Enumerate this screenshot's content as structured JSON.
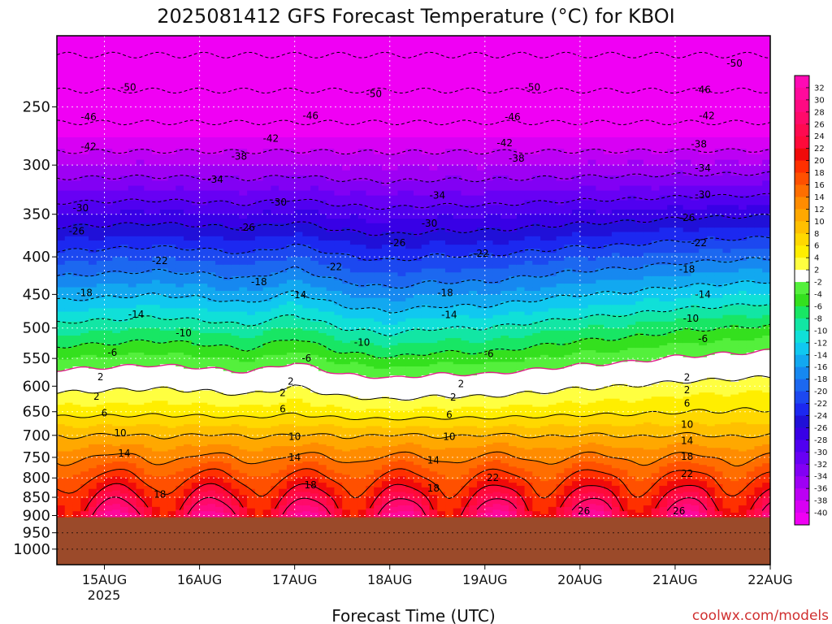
{
  "colors": {
    "ground": "#9b4a2a",
    "frame": "#000000",
    "credit": "#d03030",
    "zero_line": "#e0208a"
  },
  "chart_data": {
    "type": "heatmap",
    "title": "2025081412 GFS Forecast Temperature (°C) for KBOI",
    "xlabel": "Forecast Time (UTC)",
    "ylabel": "",
    "credit": "coolwx.com/models",
    "x_ticks": [
      "15AUG",
      "16AUG",
      "17AUG",
      "18AUG",
      "19AUG",
      "20AUG",
      "21AUG",
      "22AUG"
    ],
    "x_tick_hours": [
      12,
      36,
      60,
      84,
      108,
      132,
      156,
      180
    ],
    "x_year": "2025",
    "x_range_hours": [
      0,
      180
    ],
    "y_ticks": [
      250,
      300,
      350,
      400,
      450,
      500,
      550,
      600,
      650,
      700,
      750,
      800,
      850,
      900,
      950,
      1000
    ],
    "y_range_hpa": [
      200,
      1050
    ],
    "y_scale": "log",
    "ground_pressure_hpa": 905,
    "grid": "dotted",
    "colorbar": {
      "position": "right",
      "labels": [
        32,
        30,
        28,
        26,
        24,
        22,
        20,
        18,
        16,
        14,
        12,
        10,
        8,
        6,
        4,
        2,
        -2,
        -4,
        -6,
        -8,
        -10,
        -12,
        -14,
        -16,
        -18,
        -20,
        -22,
        -24,
        -26,
        -28,
        -30,
        -32,
        -34,
        -36,
        -38,
        -40
      ],
      "colors": [
        "#ff0ab4",
        "#ff0a9c",
        "#ff0a82",
        "#ff0a6a",
        "#ff0a50",
        "#ff0a3a",
        "#f00a0a",
        "#ff3000",
        "#ff5000",
        "#ff6e00",
        "#ff8c00",
        "#ffa800",
        "#ffc000",
        "#ffd800",
        "#ffee00",
        "#ffff40",
        "#ffffff",
        "#54f03c",
        "#34e01e",
        "#18e664",
        "#12e6a4",
        "#10e0d8",
        "#10c8f0",
        "#12a8f0",
        "#1688f0",
        "#1c68f0",
        "#1c48f0",
        "#1c28f0",
        "#2010d8",
        "#3800e6",
        "#5000f0",
        "#6800f4",
        "#8200f4",
        "#9e00f4",
        "#bc00f4",
        "#d800f4",
        "#f000f4"
      ]
    },
    "contour_levels": [
      -50,
      -46,
      -42,
      -38,
      -34,
      -30,
      -26,
      -22,
      -18,
      -14,
      -10,
      -6,
      -2,
      2,
      6,
      10,
      14,
      18,
      22,
      26
    ],
    "profile_pressure_hpa": [
      200,
      250,
      300,
      350,
      400,
      450,
      500,
      550,
      600,
      650,
      700,
      750,
      800,
      850,
      900
    ],
    "profile_temp_c": [
      -52,
      -44,
      -36,
      -28,
      -21,
      -15,
      -9,
      -4,
      1,
      5,
      10,
      14,
      18,
      22,
      26
    ],
    "times_hours": [
      0,
      12,
      24,
      36,
      48,
      60,
      72,
      84,
      96,
      108,
      120,
      132,
      144,
      156,
      168,
      180
    ],
    "mid_level_offsets_c": [
      0,
      0.5,
      1,
      0.5,
      -0.5,
      1.5,
      -1,
      -2,
      -1,
      -1,
      0,
      1,
      1.5,
      2.5,
      3,
      3.5
    ],
    "surface_diurnal_amplitude_c": 6,
    "contour_annotations": [
      {
        "value": "-50",
        "time_h": 18,
        "pressure_hpa": 235
      },
      {
        "value": "-50",
        "time_h": 80,
        "pressure_hpa": 240
      },
      {
        "value": "-50",
        "time_h": 120,
        "pressure_hpa": 235
      },
      {
        "value": "-50",
        "time_h": 171,
        "pressure_hpa": 218
      },
      {
        "value": "-46",
        "time_h": 8,
        "pressure_hpa": 258
      },
      {
        "value": "-46",
        "time_h": 64,
        "pressure_hpa": 257
      },
      {
        "value": "-46",
        "time_h": 115,
        "pressure_hpa": 258
      },
      {
        "value": "-46",
        "time_h": 163,
        "pressure_hpa": 237
      },
      {
        "value": "-42",
        "time_h": 8,
        "pressure_hpa": 283
      },
      {
        "value": "-42",
        "time_h": 54,
        "pressure_hpa": 276
      },
      {
        "value": "-42",
        "time_h": 113,
        "pressure_hpa": 280
      },
      {
        "value": "-42",
        "time_h": 164,
        "pressure_hpa": 257
      },
      {
        "value": "-38",
        "time_h": 46,
        "pressure_hpa": 292
      },
      {
        "value": "-38",
        "time_h": 116,
        "pressure_hpa": 294
      },
      {
        "value": "-38",
        "time_h": 162,
        "pressure_hpa": 281
      },
      {
        "value": "-34",
        "time_h": 40,
        "pressure_hpa": 314
      },
      {
        "value": "-34",
        "time_h": 96,
        "pressure_hpa": 330
      },
      {
        "value": "-34",
        "time_h": 163,
        "pressure_hpa": 303
      },
      {
        "value": "-30",
        "time_h": 6,
        "pressure_hpa": 343
      },
      {
        "value": "-30",
        "time_h": 56,
        "pressure_hpa": 337
      },
      {
        "value": "-30",
        "time_h": 94,
        "pressure_hpa": 360
      },
      {
        "value": "-30",
        "time_h": 163,
        "pressure_hpa": 329
      },
      {
        "value": "-26",
        "time_h": 5,
        "pressure_hpa": 369
      },
      {
        "value": "-26",
        "time_h": 48,
        "pressure_hpa": 365
      },
      {
        "value": "-26",
        "time_h": 86,
        "pressure_hpa": 383
      },
      {
        "value": "-26",
        "time_h": 159,
        "pressure_hpa": 354
      },
      {
        "value": "-22",
        "time_h": 26,
        "pressure_hpa": 405
      },
      {
        "value": "-22",
        "time_h": 70,
        "pressure_hpa": 413
      },
      {
        "value": "-22",
        "time_h": 107,
        "pressure_hpa": 396
      },
      {
        "value": "-22",
        "time_h": 162,
        "pressure_hpa": 383
      },
      {
        "value": "-18",
        "time_h": 7,
        "pressure_hpa": 448
      },
      {
        "value": "-18",
        "time_h": 51,
        "pressure_hpa": 433
      },
      {
        "value": "-18",
        "time_h": 98,
        "pressure_hpa": 448
      },
      {
        "value": "-18",
        "time_h": 159,
        "pressure_hpa": 416
      },
      {
        "value": "-14",
        "time_h": 20,
        "pressure_hpa": 479
      },
      {
        "value": "-14",
        "time_h": 61,
        "pressure_hpa": 451
      },
      {
        "value": "-14",
        "time_h": 99,
        "pressure_hpa": 480
      },
      {
        "value": "-14",
        "time_h": 163,
        "pressure_hpa": 450
      },
      {
        "value": "-10",
        "time_h": 32,
        "pressure_hpa": 508
      },
      {
        "value": "-10",
        "time_h": 77,
        "pressure_hpa": 523
      },
      {
        "value": "-10",
        "time_h": 160,
        "pressure_hpa": 485
      },
      {
        "value": "-6",
        "time_h": 14,
        "pressure_hpa": 540
      },
      {
        "value": "-6",
        "time_h": 63,
        "pressure_hpa": 550
      },
      {
        "value": "-6",
        "time_h": 109,
        "pressure_hpa": 542
      },
      {
        "value": "-6",
        "time_h": 163,
        "pressure_hpa": 517
      },
      {
        "value": "2",
        "time_h": 11,
        "pressure_hpa": 583
      },
      {
        "value": "2",
        "time_h": 10,
        "pressure_hpa": 620
      },
      {
        "value": "2",
        "time_h": 59,
        "pressure_hpa": 591
      },
      {
        "value": "2",
        "time_h": 57,
        "pressure_hpa": 613
      },
      {
        "value": "2",
        "time_h": 102,
        "pressure_hpa": 596
      },
      {
        "value": "2",
        "time_h": 100,
        "pressure_hpa": 621
      },
      {
        "value": "2",
        "time_h": 159,
        "pressure_hpa": 584
      },
      {
        "value": "2",
        "time_h": 159,
        "pressure_hpa": 607
      },
      {
        "value": "6",
        "time_h": 12,
        "pressure_hpa": 653
      },
      {
        "value": "6",
        "time_h": 57,
        "pressure_hpa": 645
      },
      {
        "value": "6",
        "time_h": 99,
        "pressure_hpa": 656
      },
      {
        "value": "6",
        "time_h": 159,
        "pressure_hpa": 633
      },
      {
        "value": "10",
        "time_h": 16,
        "pressure_hpa": 695
      },
      {
        "value": "10",
        "time_h": 60,
        "pressure_hpa": 703
      },
      {
        "value": "10",
        "time_h": 99,
        "pressure_hpa": 703
      },
      {
        "value": "10",
        "time_h": 159,
        "pressure_hpa": 677
      },
      {
        "value": "14",
        "time_h": 17,
        "pressure_hpa": 741
      },
      {
        "value": "14",
        "time_h": 60,
        "pressure_hpa": 750
      },
      {
        "value": "14",
        "time_h": 95,
        "pressure_hpa": 757
      },
      {
        "value": "14",
        "time_h": 159,
        "pressure_hpa": 712
      },
      {
        "value": "18",
        "time_h": 26,
        "pressure_hpa": 842
      },
      {
        "value": "18",
        "time_h": 64,
        "pressure_hpa": 818
      },
      {
        "value": "18",
        "time_h": 95,
        "pressure_hpa": 826
      },
      {
        "value": "18",
        "time_h": 159,
        "pressure_hpa": 748
      },
      {
        "value": "22",
        "time_h": 110,
        "pressure_hpa": 799
      },
      {
        "value": "22",
        "time_h": 159,
        "pressure_hpa": 789
      },
      {
        "value": "26",
        "time_h": 133,
        "pressure_hpa": 888
      },
      {
        "value": "26",
        "time_h": 157,
        "pressure_hpa": 888
      }
    ]
  }
}
